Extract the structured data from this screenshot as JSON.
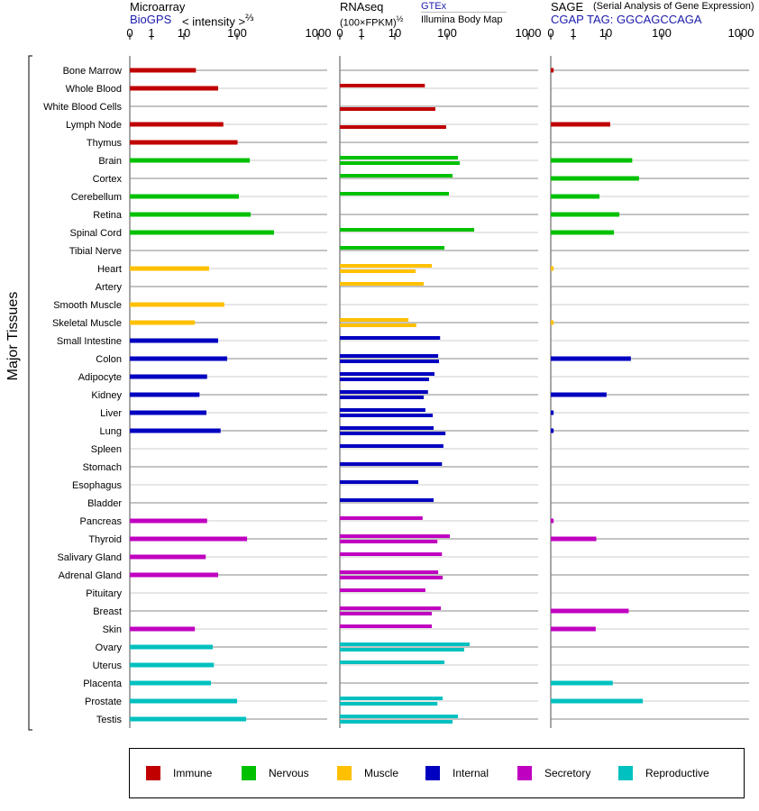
{
  "headers": {
    "microarray": {
      "title": "Microarray",
      "source": "BioGPS",
      "unit": "< intensity >",
      "unit_exp": "⅔"
    },
    "rnaseq": {
      "title": "RNAseq",
      "unit": "(100×FPKM)",
      "unit_exp": "½",
      "source_upper": "GTEx",
      "source_lower": "Illumina Body Map"
    },
    "sage": {
      "title": "SAGE",
      "subtitle": "(Serial Analysis of Gene Expression)",
      "tag": "CGAP TAG: GGCAGCCAGA"
    }
  },
  "chart_data": {
    "type": "bar",
    "orientation": "horizontal",
    "ylabel": "Major Tissues",
    "axis_ticks": [
      "0",
      "1",
      "10",
      "100",
      "1000"
    ],
    "tick_values": [
      0,
      1,
      10,
      100,
      1000
    ],
    "xlim": [
      0,
      1000
    ],
    "groups": [
      {
        "name": "Immune",
        "color": "#c00000"
      },
      {
        "name": "Nervous",
        "color": "#00c000"
      },
      {
        "name": "Muscle",
        "color": "#ffc000"
      },
      {
        "name": "Internal",
        "color": "#0000c0"
      },
      {
        "name": "Secretory",
        "color": "#c000c0"
      },
      {
        "name": "Reproductive",
        "color": "#00c0c0"
      }
    ],
    "series": [
      "microarray",
      "rnaseq_gtex",
      "rnaseq_illumina",
      "sage"
    ],
    "tissues": [
      {
        "name": "Bone Marrow",
        "group": 0,
        "microarray": 20,
        "rnaseq_gtex": null,
        "rnaseq_illumina": null,
        "sage": 0.002
      },
      {
        "name": "Whole Blood",
        "group": 0,
        "microarray": 53,
        "rnaseq_gtex": 46,
        "rnaseq_illumina": null,
        "sage": null
      },
      {
        "name": "White Blood Cells",
        "group": 0,
        "microarray": null,
        "rnaseq_gtex": null,
        "rnaseq_illumina": 68,
        "sage": null
      },
      {
        "name": "Lymph Node",
        "group": 0,
        "microarray": 64,
        "rnaseq_gtex": null,
        "rnaseq_illumina": 97,
        "sage": 13
      },
      {
        "name": "Thymus",
        "group": 0,
        "microarray": 102,
        "rnaseq_gtex": null,
        "rnaseq_illumina": null,
        "sage": null
      },
      {
        "name": "Brain",
        "group": 1,
        "microarray": 165,
        "rnaseq_gtex": 154,
        "rnaseq_illumina": 164,
        "sage": 37
      },
      {
        "name": "Cortex",
        "group": 1,
        "microarray": null,
        "rnaseq_gtex": 125,
        "rnaseq_illumina": null,
        "sage": 48
      },
      {
        "name": "Cerebellum",
        "group": 1,
        "microarray": 108,
        "rnaseq_gtex": 108,
        "rnaseq_illumina": null,
        "sage": 7.2
      },
      {
        "name": "Retina",
        "group": 1,
        "microarray": 170,
        "rnaseq_gtex": null,
        "rnaseq_illumina": null,
        "sage": 21
      },
      {
        "name": "Spinal Cord",
        "group": 1,
        "microarray": 355,
        "rnaseq_gtex": 266,
        "rnaseq_illumina": null,
        "sage": 16
      },
      {
        "name": "Tibial Nerve",
        "group": 1,
        "microarray": null,
        "rnaseq_gtex": 92,
        "rnaseq_illumina": null,
        "sage": null
      },
      {
        "name": "Heart",
        "group": 2,
        "microarray": 37,
        "rnaseq_gtex": 60,
        "rnaseq_illumina": 31,
        "sage": 0.002
      },
      {
        "name": "Artery",
        "group": 2,
        "microarray": null,
        "rnaseq_gtex": 44,
        "rnaseq_illumina": null,
        "sage": null
      },
      {
        "name": "Smooth Muscle",
        "group": 2,
        "microarray": 66,
        "rnaseq_gtex": null,
        "rnaseq_illumina": null,
        "sage": null
      },
      {
        "name": "Skeletal Muscle",
        "group": 2,
        "microarray": 19,
        "rnaseq_gtex": 22,
        "rnaseq_illumina": 32,
        "sage": 0.002
      },
      {
        "name": "Small Intestine",
        "group": 3,
        "microarray": 53,
        "rnaseq_gtex": 80,
        "rnaseq_illumina": null,
        "sage": null
      },
      {
        "name": "Colon",
        "group": 3,
        "microarray": 73,
        "rnaseq_gtex": 75,
        "rnaseq_illumina": 77,
        "sage": 35
      },
      {
        "name": "Adipocyte",
        "group": 3,
        "microarray": 34,
        "rnaseq_gtex": 66,
        "rnaseq_illumina": 54,
        "sage": null
      },
      {
        "name": "Kidney",
        "group": 3,
        "microarray": 24,
        "rnaseq_gtex": 52,
        "rnaseq_illumina": 44,
        "sage": 10.5
      },
      {
        "name": "Liver",
        "group": 3,
        "microarray": 33,
        "rnaseq_gtex": 47,
        "rnaseq_illumina": 62,
        "sage": 0.002
      },
      {
        "name": "Lung",
        "group": 3,
        "microarray": 58,
        "rnaseq_gtex": 64,
        "rnaseq_illumina": 95,
        "sage": 0.002
      },
      {
        "name": "Spleen",
        "group": 3,
        "microarray": null,
        "rnaseq_gtex": 89,
        "rnaseq_illumina": null,
        "sage": null
      },
      {
        "name": "Stomach",
        "group": 3,
        "microarray": null,
        "rnaseq_gtex": 85,
        "rnaseq_illumina": null,
        "sage": null
      },
      {
        "name": "Esophagus",
        "group": 3,
        "microarray": null,
        "rnaseq_gtex": 35,
        "rnaseq_illumina": null,
        "sage": null
      },
      {
        "name": "Bladder",
        "group": 3,
        "microarray": null,
        "rnaseq_gtex": 64,
        "rnaseq_illumina": null,
        "sage": null
      },
      {
        "name": "Pancreas",
        "group": 4,
        "microarray": 34,
        "rnaseq_gtex": 42,
        "rnaseq_illumina": null,
        "sage": 0.002
      },
      {
        "name": "Thyroid",
        "group": 4,
        "microarray": 149,
        "rnaseq_gtex": 112,
        "rnaseq_illumina": 73,
        "sage": 6.0
      },
      {
        "name": "Salivary Gland",
        "group": 4,
        "microarray": 32,
        "rnaseq_gtex": 85,
        "rnaseq_illumina": null,
        "sage": null
      },
      {
        "name": "Adrenal Gland",
        "group": 4,
        "microarray": 53,
        "rnaseq_gtex": 75,
        "rnaseq_illumina": 87,
        "sage": null
      },
      {
        "name": "Pituitary",
        "group": 4,
        "microarray": null,
        "rnaseq_gtex": 47,
        "rnaseq_illumina": null,
        "sage": null
      },
      {
        "name": "Breast",
        "group": 4,
        "microarray": null,
        "rnaseq_gtex": 82,
        "rnaseq_illumina": 60,
        "sage": 32
      },
      {
        "name": "Skin",
        "group": 4,
        "microarray": 19,
        "rnaseq_gtex": 60,
        "rnaseq_illumina": null,
        "sage": 5.8
      },
      {
        "name": "Ovary",
        "group": 5,
        "microarray": 43,
        "rnaseq_gtex": 230,
        "rnaseq_illumina": 192,
        "sage": null
      },
      {
        "name": "Uterus",
        "group": 5,
        "microarray": 45,
        "rnaseq_gtex": 92,
        "rnaseq_illumina": null,
        "sage": null
      },
      {
        "name": "Placenta",
        "group": 5,
        "microarray": 40,
        "rnaseq_gtex": null,
        "rnaseq_illumina": null,
        "sage": 15
      },
      {
        "name": "Prostate",
        "group": 5,
        "microarray": 100,
        "rnaseq_gtex": 87,
        "rnaseq_illumina": 73,
        "sage": 55
      },
      {
        "name": "Testis",
        "group": 5,
        "microarray": 144,
        "rnaseq_gtex": 154,
        "rnaseq_illumina": 125,
        "sage": null
      }
    ]
  }
}
